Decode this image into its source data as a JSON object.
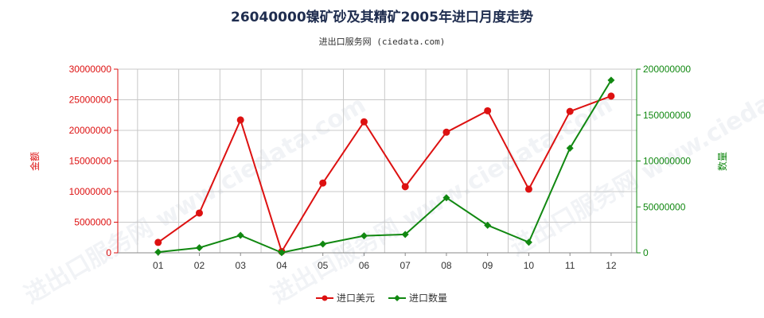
{
  "colors": {
    "left": "#dd1111",
    "right": "#118811",
    "grid": "#c8c8c8",
    "axis": "#888888"
  },
  "chart_data": {
    "type": "line",
    "title": "26040000镍矿砂及其精矿2005年进口月度走势",
    "subtitle": "进出口服务网 (ciedata.com)",
    "watermark": "进出口服务网 www.ciedata.com",
    "categories": [
      "01",
      "02",
      "03",
      "04",
      "05",
      "06",
      "07",
      "08",
      "09",
      "10",
      "11",
      "12"
    ],
    "y_left": {
      "label": "金额",
      "range": [
        0,
        30000000
      ],
      "ticks": [
        "0",
        "5000000",
        "10000000",
        "15000000",
        "20000000",
        "25000000",
        "30000000"
      ]
    },
    "y_right": {
      "label": "数量",
      "range": [
        0,
        200000000
      ],
      "ticks": [
        "0",
        "50000000",
        "100000000",
        "150000000",
        "200000000"
      ]
    },
    "grid": true,
    "legend_position": "bottom-center",
    "series": [
      {
        "name": "进口美元",
        "axis": "left",
        "color": "#dd1111",
        "marker": "circle",
        "values": [
          1700000,
          6500000,
          21700000,
          200000,
          11400000,
          21400000,
          10800000,
          19700000,
          23200000,
          10400000,
          23100000,
          25600000
        ]
      },
      {
        "name": "进口数量",
        "axis": "right",
        "color": "#118811",
        "marker": "diamond",
        "values": [
          800000,
          5500000,
          19000000,
          200000,
          9500000,
          18500000,
          20000000,
          60000000,
          30000000,
          11500000,
          114000000,
          188000000
        ]
      }
    ]
  }
}
